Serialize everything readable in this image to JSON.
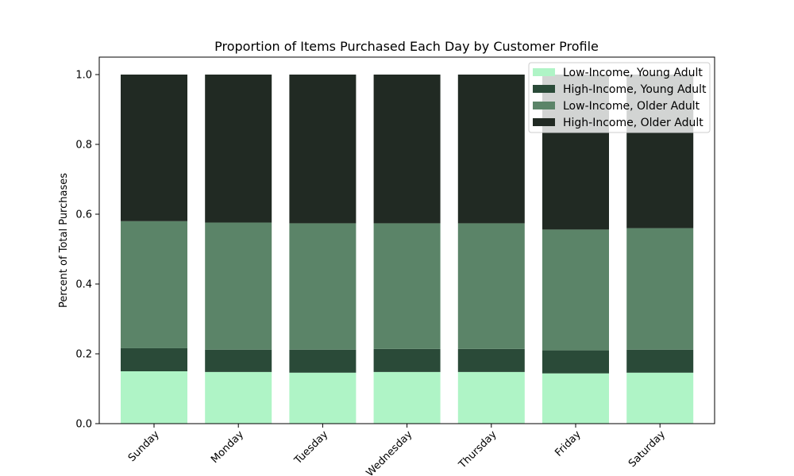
{
  "chart_data": {
    "type": "bar",
    "stacked": true,
    "title": "Proportion of Items Purchased Each Day by Customer Profile",
    "xlabel": "",
    "ylabel": "Percent of Total Purchases",
    "ylim": [
      0,
      1.05
    ],
    "yticks": [
      "0.0",
      "0.2",
      "0.4",
      "0.6",
      "0.8",
      "1.0"
    ],
    "ytick_values": [
      0,
      0.2,
      0.4,
      0.6,
      0.8,
      1.0
    ],
    "categories": [
      "Sunday",
      "Monday",
      "Tuesday",
      "Wednesday",
      "Thursday",
      "Friday",
      "Saturday"
    ],
    "legend_position": "top-right",
    "series": [
      {
        "name": "Low-Income, Young Adult",
        "color": "#aff4c6",
        "values": [
          0.15,
          0.148,
          0.146,
          0.148,
          0.148,
          0.144,
          0.146
        ]
      },
      {
        "name": "High-Income, Young Adult",
        "color": "#2a4a38",
        "values": [
          0.066,
          0.064,
          0.066,
          0.066,
          0.066,
          0.066,
          0.066
        ]
      },
      {
        "name": "Low-Income, Older Adult",
        "color": "#5b8468",
        "values": [
          0.364,
          0.364,
          0.362,
          0.36,
          0.36,
          0.346,
          0.348
        ]
      },
      {
        "name": "High-Income, Older Adult",
        "color": "#212a23",
        "values": [
          0.42,
          0.424,
          0.426,
          0.426,
          0.426,
          0.444,
          0.44
        ]
      }
    ]
  }
}
